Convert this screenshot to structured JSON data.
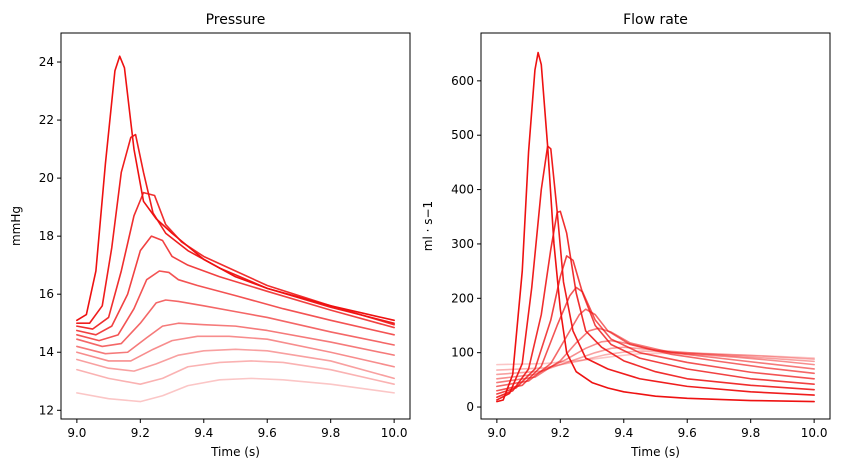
{
  "chart_data": [
    {
      "type": "line",
      "title": "Pressure",
      "xlabel": "Time (s)",
      "ylabel": "mmHg",
      "xlim": [
        8.95,
        10.05
      ],
      "ylim": [
        11.7,
        25.0
      ],
      "xticks": [
        9.0,
        9.2,
        9.4,
        9.6,
        9.8,
        10.0
      ],
      "xtick_labels": [
        "9.0",
        "9.2",
        "9.4",
        "9.6",
        "9.8",
        "10.0"
      ],
      "yticks": [
        12,
        14,
        16,
        18,
        20,
        22,
        24
      ],
      "ytick_labels": [
        "12",
        "14",
        "16",
        "18",
        "20",
        "22",
        "24"
      ],
      "grid": false,
      "series": [
        {
          "color": "#ee1111",
          "opacity": 1.0,
          "x": [
            9.0,
            9.03,
            9.06,
            9.09,
            9.12,
            9.135,
            9.15,
            9.18,
            9.21,
            9.25,
            9.3,
            9.4,
            9.5,
            9.6,
            9.7,
            9.8,
            9.9,
            10.0
          ],
          "y": [
            15.1,
            15.3,
            16.8,
            20.5,
            23.7,
            24.2,
            23.8,
            21.0,
            19.2,
            18.6,
            18.1,
            17.2,
            16.6,
            16.2,
            15.9,
            15.6,
            15.35,
            15.1
          ]
        },
        {
          "color": "#ee1111",
          "opacity": 0.95,
          "x": [
            9.0,
            9.04,
            9.08,
            9.11,
            9.14,
            9.17,
            9.185,
            9.21,
            9.24,
            9.28,
            9.35,
            9.45,
            9.6,
            9.8,
            10.0
          ],
          "y": [
            15.0,
            15.0,
            15.6,
            17.6,
            20.2,
            21.4,
            21.5,
            20.2,
            18.8,
            18.1,
            17.5,
            16.9,
            16.2,
            15.55,
            15.0
          ]
        },
        {
          "color": "#ee1111",
          "opacity": 0.88,
          "x": [
            9.0,
            9.05,
            9.1,
            9.14,
            9.18,
            9.21,
            9.245,
            9.28,
            9.33,
            9.4,
            9.5,
            9.6,
            9.8,
            10.0
          ],
          "y": [
            14.9,
            14.8,
            15.2,
            16.8,
            18.7,
            19.5,
            19.4,
            18.4,
            17.8,
            17.3,
            16.8,
            16.3,
            15.6,
            14.95
          ]
        },
        {
          "color": "#ee1111",
          "opacity": 0.8,
          "x": [
            9.0,
            9.06,
            9.11,
            9.16,
            9.2,
            9.235,
            9.27,
            9.3,
            9.35,
            9.45,
            9.6,
            9.8,
            10.0
          ],
          "y": [
            14.75,
            14.6,
            14.9,
            16.0,
            17.5,
            18.0,
            17.85,
            17.3,
            17.0,
            16.6,
            16.1,
            15.45,
            14.85
          ]
        },
        {
          "color": "#ee1111",
          "opacity": 0.72,
          "x": [
            9.0,
            9.07,
            9.13,
            9.18,
            9.22,
            9.26,
            9.29,
            9.32,
            9.38,
            9.5,
            9.65,
            9.8,
            10.0
          ],
          "y": [
            14.6,
            14.4,
            14.6,
            15.5,
            16.5,
            16.8,
            16.75,
            16.5,
            16.3,
            15.95,
            15.5,
            15.1,
            14.6
          ]
        },
        {
          "color": "#ee1111",
          "opacity": 0.64,
          "x": [
            9.0,
            9.08,
            9.14,
            9.2,
            9.25,
            9.28,
            9.32,
            9.4,
            9.5,
            9.6,
            9.8,
            10.0
          ],
          "y": [
            14.45,
            14.2,
            14.3,
            15.0,
            15.7,
            15.8,
            15.75,
            15.6,
            15.4,
            15.2,
            14.7,
            14.25
          ]
        },
        {
          "color": "#ee1111",
          "opacity": 0.56,
          "x": [
            9.0,
            9.09,
            9.16,
            9.22,
            9.27,
            9.32,
            9.4,
            9.5,
            9.6,
            9.8,
            10.0
          ],
          "y": [
            14.2,
            13.95,
            14.0,
            14.5,
            14.9,
            15.0,
            14.95,
            14.9,
            14.75,
            14.35,
            13.9
          ]
        },
        {
          "color": "#ee1111",
          "opacity": 0.48,
          "x": [
            9.0,
            9.1,
            9.17,
            9.24,
            9.3,
            9.38,
            9.48,
            9.6,
            9.8,
            10.0
          ],
          "y": [
            14.0,
            13.7,
            13.7,
            14.1,
            14.4,
            14.55,
            14.55,
            14.45,
            14.0,
            13.5
          ]
        },
        {
          "color": "#ee1111",
          "opacity": 0.4,
          "x": [
            9.0,
            9.1,
            9.18,
            9.25,
            9.32,
            9.4,
            9.5,
            9.6,
            9.8,
            10.0
          ],
          "y": [
            13.75,
            13.45,
            13.35,
            13.6,
            13.9,
            14.05,
            14.1,
            14.05,
            13.7,
            13.1
          ]
        },
        {
          "color": "#ee1111",
          "opacity": 0.32,
          "x": [
            9.0,
            9.1,
            9.2,
            9.27,
            9.35,
            9.45,
            9.55,
            9.65,
            9.8,
            10.0
          ],
          "y": [
            13.4,
            13.1,
            12.9,
            13.1,
            13.5,
            13.65,
            13.7,
            13.65,
            13.4,
            12.9
          ]
        },
        {
          "color": "#ee1111",
          "opacity": 0.24,
          "x": [
            9.0,
            9.1,
            9.2,
            9.27,
            9.35,
            9.45,
            9.55,
            9.65,
            9.8,
            10.0
          ],
          "y": [
            12.6,
            12.4,
            12.3,
            12.5,
            12.85,
            13.05,
            13.1,
            13.05,
            12.9,
            12.6
          ]
        }
      ]
    },
    {
      "type": "line",
      "title": "Flow rate",
      "xlabel": "Time (s)",
      "ylabel": "ml · s−1",
      "xlim": [
        8.95,
        10.05
      ],
      "ylim": [
        -22,
        688
      ],
      "xticks": [
        9.0,
        9.2,
        9.4,
        9.6,
        9.8,
        10.0
      ],
      "xtick_labels": [
        "9.0",
        "9.2",
        "9.4",
        "9.6",
        "9.8",
        "10.0"
      ],
      "yticks": [
        0,
        100,
        200,
        300,
        400,
        500,
        600
      ],
      "ytick_labels": [
        "0",
        "100",
        "200",
        "300",
        "400",
        "500",
        "600"
      ],
      "grid": false,
      "series": [
        {
          "color": "#ee1111",
          "opacity": 1.0,
          "x": [
            9.0,
            9.02,
            9.05,
            9.08,
            9.1,
            9.12,
            9.13,
            9.14,
            9.16,
            9.18,
            9.2,
            9.22,
            9.25,
            9.3,
            9.35,
            9.4,
            9.5,
            9.6,
            9.8,
            10.0
          ],
          "y": [
            10,
            13,
            60,
            250,
            470,
            620,
            652,
            630,
            480,
            300,
            180,
            100,
            65,
            45,
            35,
            28,
            20,
            16,
            12,
            10
          ]
        },
        {
          "color": "#ee1111",
          "opacity": 0.95,
          "x": [
            9.0,
            9.04,
            9.08,
            9.11,
            9.14,
            9.16,
            9.17,
            9.19,
            9.21,
            9.24,
            9.28,
            9.35,
            9.45,
            9.6,
            9.8,
            10.0
          ],
          "y": [
            13,
            25,
            80,
            220,
            400,
            480,
            475,
            360,
            230,
            140,
            90,
            70,
            52,
            38,
            28,
            22
          ]
        },
        {
          "color": "#ee1111",
          "opacity": 0.88,
          "x": [
            9.0,
            9.05,
            9.1,
            9.14,
            9.17,
            9.19,
            9.2,
            9.22,
            9.25,
            9.28,
            9.33,
            9.4,
            9.5,
            9.6,
            9.8,
            10.0
          ],
          "y": [
            18,
            30,
            70,
            170,
            290,
            358,
            360,
            320,
            210,
            140,
            110,
            85,
            65,
            52,
            40,
            32
          ]
        },
        {
          "color": "#ee1111",
          "opacity": 0.8,
          "x": [
            9.0,
            9.06,
            9.12,
            9.17,
            9.2,
            9.22,
            9.24,
            9.27,
            9.31,
            9.36,
            9.45,
            9.6,
            9.8,
            10.0
          ],
          "y": [
            24,
            35,
            70,
            160,
            240,
            278,
            270,
            210,
            150,
            115,
            90,
            70,
            52,
            42
          ]
        },
        {
          "color": "#ee1111",
          "opacity": 0.72,
          "x": [
            9.0,
            9.08,
            9.14,
            9.19,
            9.23,
            9.25,
            9.27,
            9.31,
            9.36,
            9.45,
            9.6,
            9.8,
            10.0
          ],
          "y": [
            30,
            40,
            75,
            150,
            205,
            220,
            212,
            160,
            125,
            100,
            82,
            64,
            52
          ]
        },
        {
          "color": "#ee1111",
          "opacity": 0.64,
          "x": [
            9.0,
            9.1,
            9.17,
            9.22,
            9.26,
            9.28,
            9.31,
            9.35,
            9.42,
            9.55,
            9.7,
            9.85,
            10.0
          ],
          "y": [
            38,
            48,
            80,
            130,
            170,
            180,
            170,
            140,
            115,
            97,
            84,
            72,
            62
          ]
        },
        {
          "color": "#ee1111",
          "opacity": 0.56,
          "x": [
            9.0,
            9.12,
            9.2,
            9.25,
            9.29,
            9.32,
            9.36,
            9.42,
            9.55,
            9.7,
            9.85,
            10.0
          ],
          "y": [
            45,
            55,
            85,
            118,
            140,
            145,
            138,
            118,
            100,
            90,
            80,
            70
          ]
        },
        {
          "color": "#ee1111",
          "opacity": 0.48,
          "x": [
            9.0,
            9.12,
            9.22,
            9.28,
            9.33,
            9.36,
            9.42,
            9.5,
            9.6,
            9.75,
            9.9,
            10.0
          ],
          "y": [
            52,
            60,
            88,
            108,
            120,
            122,
            116,
            104,
            98,
            92,
            84,
            78
          ]
        },
        {
          "color": "#ee1111",
          "opacity": 0.4,
          "x": [
            9.0,
            9.14,
            9.25,
            9.31,
            9.36,
            9.4,
            9.48,
            9.6,
            9.8,
            10.0
          ],
          "y": [
            60,
            66,
            88,
            100,
            108,
            110,
            106,
            100,
            92,
            84
          ]
        },
        {
          "color": "#ee1111",
          "opacity": 0.32,
          "x": [
            9.0,
            9.15,
            9.27,
            9.34,
            9.4,
            9.46,
            9.6,
            9.8,
            10.0
          ],
          "y": [
            68,
            72,
            86,
            96,
            101,
            103,
            100,
            95,
            88
          ]
        },
        {
          "color": "#ee1111",
          "opacity": 0.24,
          "x": [
            9.0,
            9.15,
            9.3,
            9.38,
            9.45,
            9.55,
            9.7,
            9.85,
            10.0
          ],
          "y": [
            78,
            80,
            88,
            94,
            98,
            99,
            97,
            94,
            90
          ]
        }
      ]
    }
  ]
}
